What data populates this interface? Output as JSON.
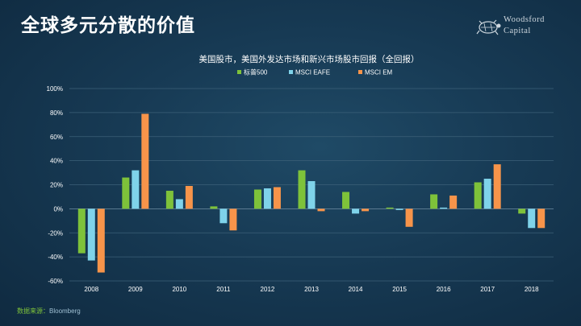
{
  "slide": {
    "title": "全球多元分散的价值",
    "logo_line1": "Woodsford",
    "logo_line2": "Capital",
    "source_label": "数据来源：",
    "source_value": "Bloomberg"
  },
  "chart_data": {
    "type": "bar",
    "title": "美国股市，美国外发达市场和新兴市场股市回报（全回报）",
    "categories": [
      "2008",
      "2009",
      "2010",
      "2011",
      "2012",
      "2013",
      "2014",
      "2015",
      "2016",
      "2017",
      "2018"
    ],
    "series": [
      {
        "name": "标普500",
        "color": "#7ec23a",
        "values": [
          -37,
          26,
          15,
          2,
          16,
          32,
          14,
          1,
          12,
          22,
          -4
        ]
      },
      {
        "name": "MSCI EAFE",
        "color": "#7fd3ea",
        "values": [
          -43,
          32,
          8,
          -12,
          17,
          23,
          -4,
          -1,
          1,
          25,
          -16
        ]
      },
      {
        "name": "MSCI EM",
        "color": "#f7944a",
        "values": [
          -53,
          79,
          19,
          -18,
          18,
          -2,
          -2,
          -15,
          11,
          37,
          -16
        ]
      }
    ],
    "ylim": [
      -60,
      100
    ],
    "yticks": [
      -60,
      -40,
      -20,
      0,
      20,
      40,
      60,
      80,
      100
    ],
    "ytick_labels": [
      "-60%",
      "-40%",
      "-20%",
      "0%",
      "20%",
      "40%",
      "60%",
      "80%",
      "100%"
    ],
    "grid": true,
    "legend_position": "top-center"
  }
}
